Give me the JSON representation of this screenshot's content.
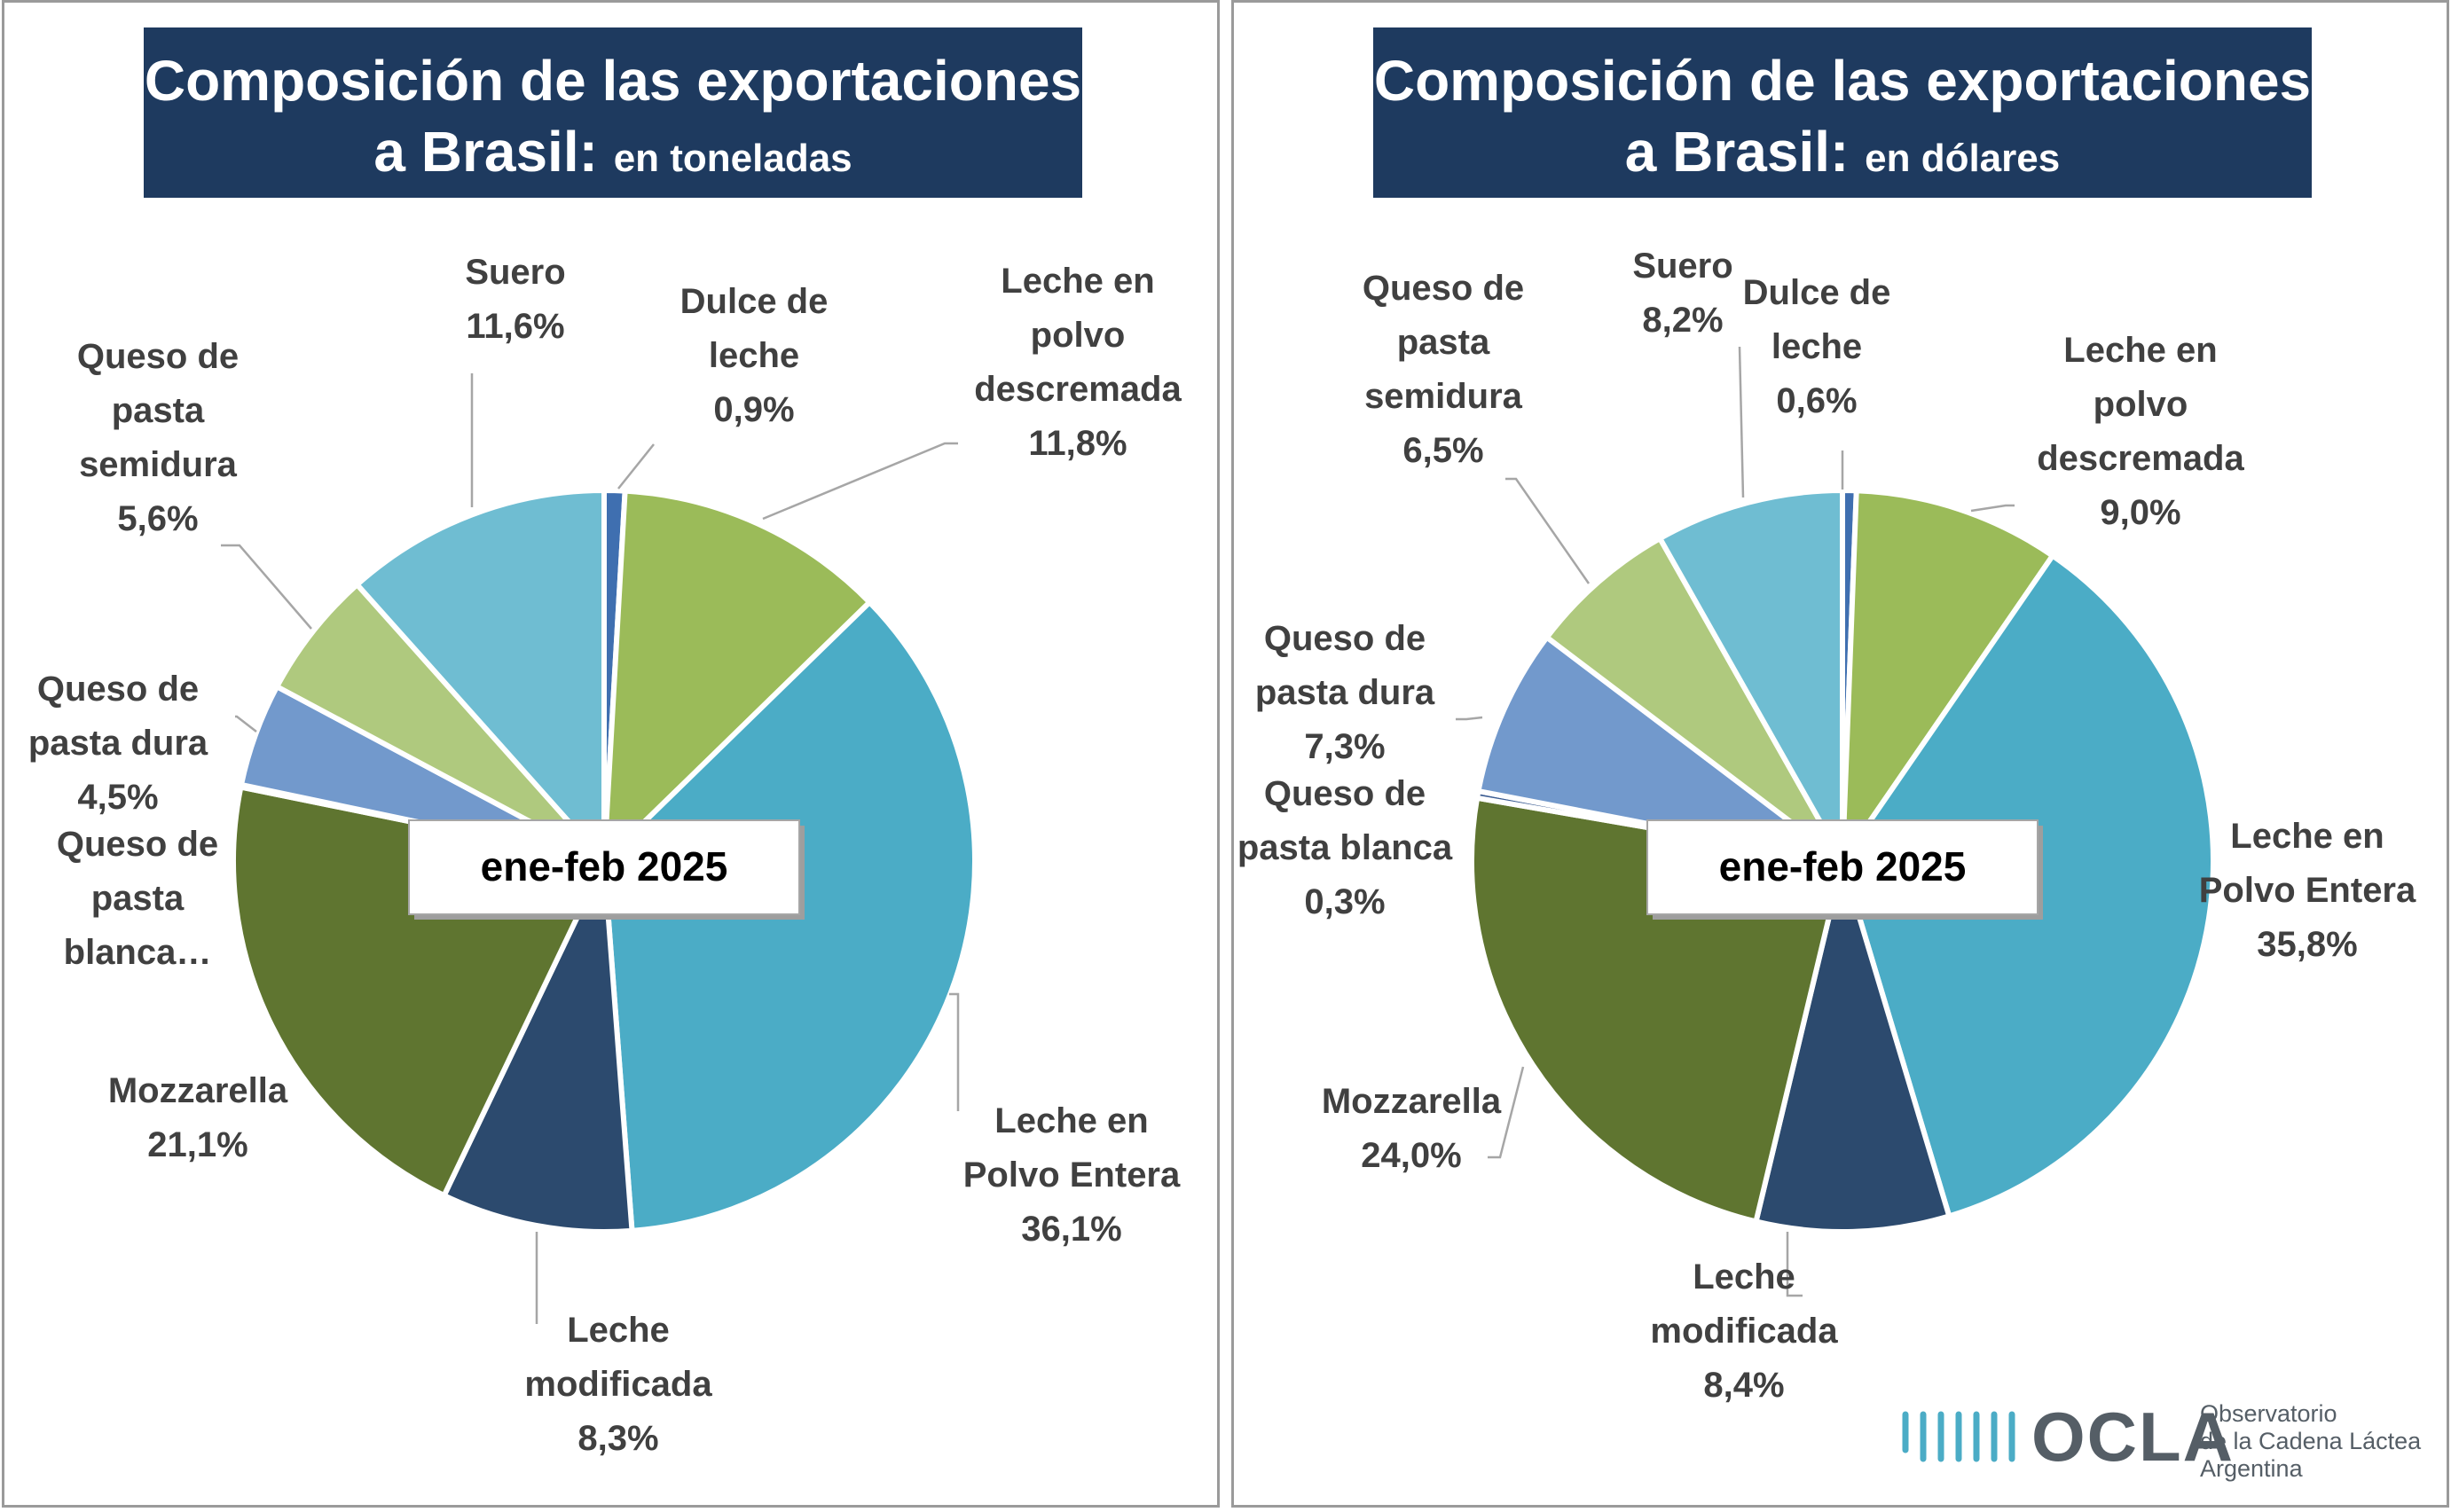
{
  "panels": [
    {
      "title_line1": "Composición de las exportaciones",
      "title_line2_main": "a Brasil:",
      "title_line2_sub": "en toneladas",
      "period_label": "ene-feb 2025"
    },
    {
      "title_line1": "Composición de las exportaciones",
      "title_line2_main": "a Brasil:",
      "title_line2_sub": "en dólares",
      "period_label": "ene-feb 2025"
    }
  ],
  "chart_data": [
    {
      "type": "pie",
      "title": "Composición de las exportaciones a Brasil: en toneladas",
      "slices": [
        {
          "name": "Dulce de leche",
          "value": 0.9,
          "value_label": "0,9%",
          "color": "#3f6fb0"
        },
        {
          "name": "Leche en polvo descremada",
          "value": 11.8,
          "value_label": "11,8%",
          "color": "#9bbb59"
        },
        {
          "name": "Leche en Polvo Entera",
          "value": 36.1,
          "value_label": "36,1%",
          "color": "#4bacc6"
        },
        {
          "name": "Leche modificada",
          "value": 8.3,
          "value_label": "8,3%",
          "color": "#2c4a6e"
        },
        {
          "name": "Mozzarella",
          "value": 21.1,
          "value_label": "21,1%",
          "color": "#5f7530"
        },
        {
          "name": "Queso de pasta blanca",
          "value": 0.1,
          "value_label": "",
          "color": "#3b5c92"
        },
        {
          "name": "Queso de pasta dura",
          "value": 4.5,
          "value_label": "4,5%",
          "color": "#7299cc"
        },
        {
          "name": "Queso de pasta semidura",
          "value": 5.6,
          "value_label": "5,6%",
          "color": "#afc97e"
        },
        {
          "name": "Suero",
          "value": 11.6,
          "value_label": "11,6%",
          "color": "#6fbdd2"
        }
      ],
      "labels": [
        {
          "lines": [
            "Dulce de",
            "leche",
            "0,9%"
          ]
        },
        {
          "lines": [
            "Leche en",
            "polvo",
            "descremada",
            "11,8%"
          ]
        },
        {
          "lines": [
            "Leche en",
            "Polvo Entera",
            "36,1%"
          ]
        },
        {
          "lines": [
            "Leche",
            "modificada",
            "8,3%"
          ]
        },
        {
          "lines": [
            "Mozzarella",
            "21,1%"
          ]
        },
        {
          "lines": [
            "Queso de",
            "pasta",
            "blanca…"
          ]
        },
        {
          "lines": [
            "Queso de",
            "pasta dura",
            "4,5%"
          ]
        },
        {
          "lines": [
            "Queso de",
            "pasta",
            "semidura",
            "5,6%"
          ]
        },
        {
          "lines": [
            "Suero",
            "11,6%"
          ]
        }
      ]
    },
    {
      "type": "pie",
      "title": "Composición de las exportaciones a Brasil: en dólares",
      "slices": [
        {
          "name": "Dulce de leche",
          "value": 0.6,
          "value_label": "0,6%",
          "color": "#3f6fb0"
        },
        {
          "name": "Leche en polvo descremada",
          "value": 9.0,
          "value_label": "9,0%",
          "color": "#9bbb59"
        },
        {
          "name": "Leche en Polvo Entera",
          "value": 35.8,
          "value_label": "35,8%",
          "color": "#4bacc6"
        },
        {
          "name": "Leche modificada",
          "value": 8.4,
          "value_label": "8,4%",
          "color": "#2c4a6e"
        },
        {
          "name": "Mozzarella",
          "value": 24.0,
          "value_label": "24,0%",
          "color": "#5f7530"
        },
        {
          "name": "Queso de pasta blanca",
          "value": 0.3,
          "value_label": "0,3%",
          "color": "#3b5c92"
        },
        {
          "name": "Queso de pasta dura",
          "value": 7.3,
          "value_label": "7,3%",
          "color": "#7299cc"
        },
        {
          "name": "Queso de pasta semidura",
          "value": 6.5,
          "value_label": "6,5%",
          "color": "#afc97e"
        },
        {
          "name": "Suero",
          "value": 8.2,
          "value_label": "8,2%",
          "color": "#6fbdd2"
        }
      ],
      "labels": [
        {
          "lines": [
            "Dulce de",
            "leche",
            "0,6%"
          ]
        },
        {
          "lines": [
            "Leche en",
            "polvo",
            "descremada",
            "9,0%"
          ]
        },
        {
          "lines": [
            "Leche en",
            "Polvo Entera",
            "35,8%"
          ]
        },
        {
          "lines": [
            "Leche",
            "modificada",
            "8,4%"
          ]
        },
        {
          "lines": [
            "Mozzarella",
            "24,0%"
          ]
        },
        {
          "lines": [
            "Queso de",
            "pasta blanca",
            "0,3%"
          ]
        },
        {
          "lines": [
            "Queso de",
            "pasta dura",
            "7,3%"
          ]
        },
        {
          "lines": [
            "Queso de",
            "pasta",
            "semidura",
            "6,5%"
          ]
        },
        {
          "lines": [
            "Suero",
            "8,2%"
          ]
        }
      ]
    }
  ],
  "logo": {
    "text": "OCLA",
    "sub_line1": "Observatorio",
    "sub_line2": "de la Cadena Láctea",
    "sub_line3": "Argentina"
  }
}
